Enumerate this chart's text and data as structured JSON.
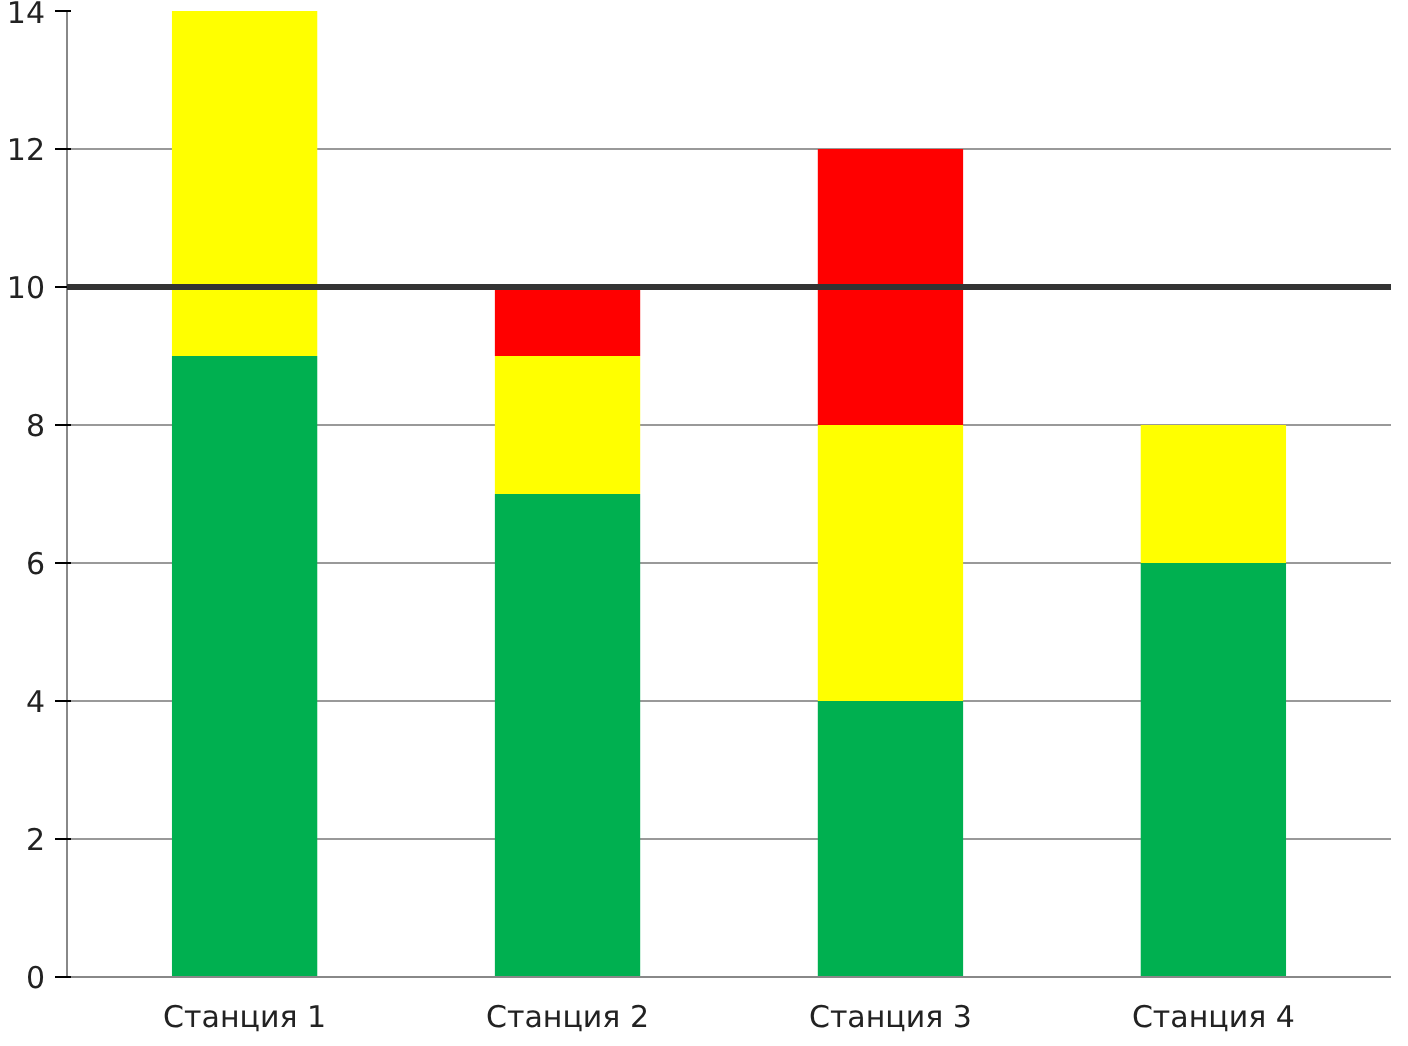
{
  "chart_data": {
    "type": "bar",
    "stacked": true,
    "categories": [
      "Станция 1",
      "Станция 2",
      "Станция 3",
      "Станция 4"
    ],
    "series": [
      {
        "color": "#00b050",
        "values": [
          9,
          7,
          4,
          6
        ]
      },
      {
        "color": "#ffff00",
        "values": [
          5,
          2,
          4,
          2
        ]
      },
      {
        "color": "#ff0000",
        "values": [
          null,
          1,
          4,
          null
        ]
      }
    ],
    "ylim": [
      0,
      14
    ],
    "yticks": [
      0,
      2,
      4,
      6,
      8,
      10,
      12,
      14
    ],
    "grid": "y",
    "ref_lines": [
      {
        "axis": "y",
        "value": 10,
        "color": "#333333"
      }
    ]
  }
}
